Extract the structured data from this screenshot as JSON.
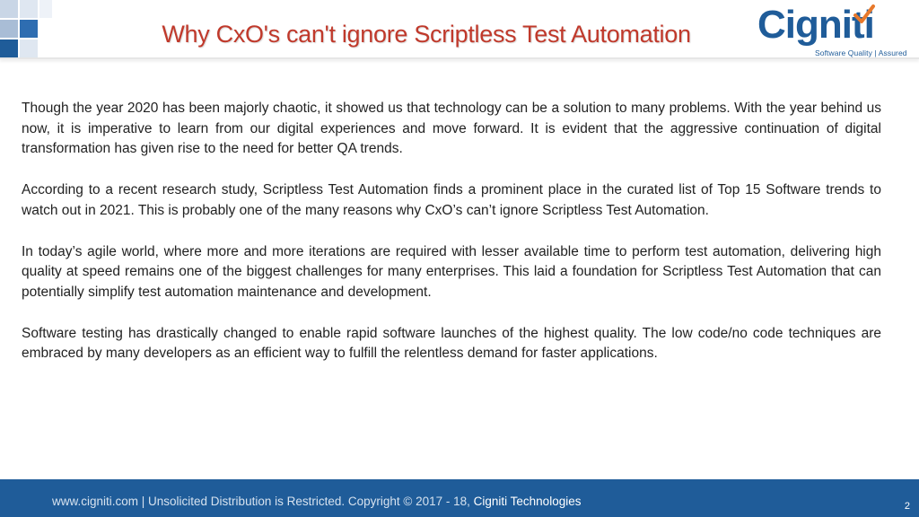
{
  "header": {
    "title": "Why CxO's can't ignore Scriptless Test Automation",
    "title_color": "#c0392b",
    "logo": {
      "name": "Cigniti",
      "tagline": "Software Quality | Assured",
      "brand_color": "#1f5c99",
      "accent_color": "#e8792b",
      "icon": "checkmark-icon"
    }
  },
  "body": {
    "paragraphs": [
      "Though the year 2020 has been majorly chaotic, it showed us that technology can be a solution to many problems. With the year behind us now, it is imperative to learn from our digital experiences and move forward. It is evident that the aggressive continuation of digital transformation has given rise to the need for better QA trends.",
      "According to a recent research study, Scriptless Test Automation finds a prominent place in the curated list of Top 15 Software trends to watch out in 2021. This is probably one of the many reasons why CxO’s can’t ignore Scriptless Test Automation.",
      "In today’s agile world, where more and more iterations are required with lesser available time to perform test automation, delivering high quality at speed remains one of the biggest challenges for many enterprises. This laid a foundation for Scriptless Test Automation that can potentially simplify test automation maintenance and development.",
      "Software testing has drastically changed to enable rapid software launches of the highest quality. The low code/no code techniques are embraced by many developers as an efficient way to fulfill the relentless demand for faster applications."
    ]
  },
  "footer": {
    "text": "www.cigniti.com  |  Unsolicited Distribution is Restricted. Copyright © 2017 - 18, ",
    "company": "Cigniti Technologies",
    "page_number": "2",
    "background_color": "#1f5c99"
  }
}
